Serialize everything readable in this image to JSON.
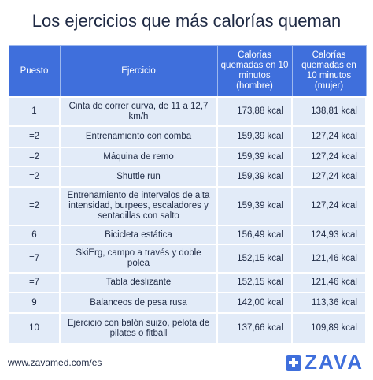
{
  "header": {
    "title": "Los ejercicios que más calorías queman"
  },
  "table": {
    "columns": [
      "Puesto",
      "Ejercicio",
      "Calorías quemadas en 10 minutos (hombre)",
      "Calorías quemadas en 10 minutos (mujer)"
    ],
    "rows": [
      [
        "1",
        "Cinta de correr curva, de 11 a 12,7 km/h",
        "173,88 kcal",
        "138,81 kcal"
      ],
      [
        "=2",
        "Entrenamiento con comba",
        "159,39 kcal",
        "127,24 kcal"
      ],
      [
        "=2",
        "Máquina de remo",
        "159,39 kcal",
        "127,24 kcal"
      ],
      [
        "=2",
        "Shuttle run",
        "159,39 kcal",
        "127,24 kcal"
      ],
      [
        "=2",
        "Entrenamiento de intervalos de alta intensidad, burpees, escaladores y sentadillas con salto",
        "159,39 kcal",
        "127,24 kcal"
      ],
      [
        "6",
        "Bicicleta estática",
        "156,49 kcal",
        "124,93 kcal"
      ],
      [
        "=7",
        "SkiErg, campo a través y doble polea",
        "152,15 kcal",
        "121,46 kcal"
      ],
      [
        "=7",
        "Tabla deslizante",
        "152,15 kcal",
        "121,46 kcal"
      ],
      [
        "9",
        "Balanceos de pesa rusa",
        "142,00 kcal",
        "113,36 kcal"
      ],
      [
        "10",
        "Ejercicio con balón suizo, pelota de pilates o fitball",
        "137,66 kcal",
        "109,89 kcal"
      ]
    ]
  },
  "footer": {
    "url": "www.zavamed.com/es",
    "logo": "ZAVA"
  }
}
